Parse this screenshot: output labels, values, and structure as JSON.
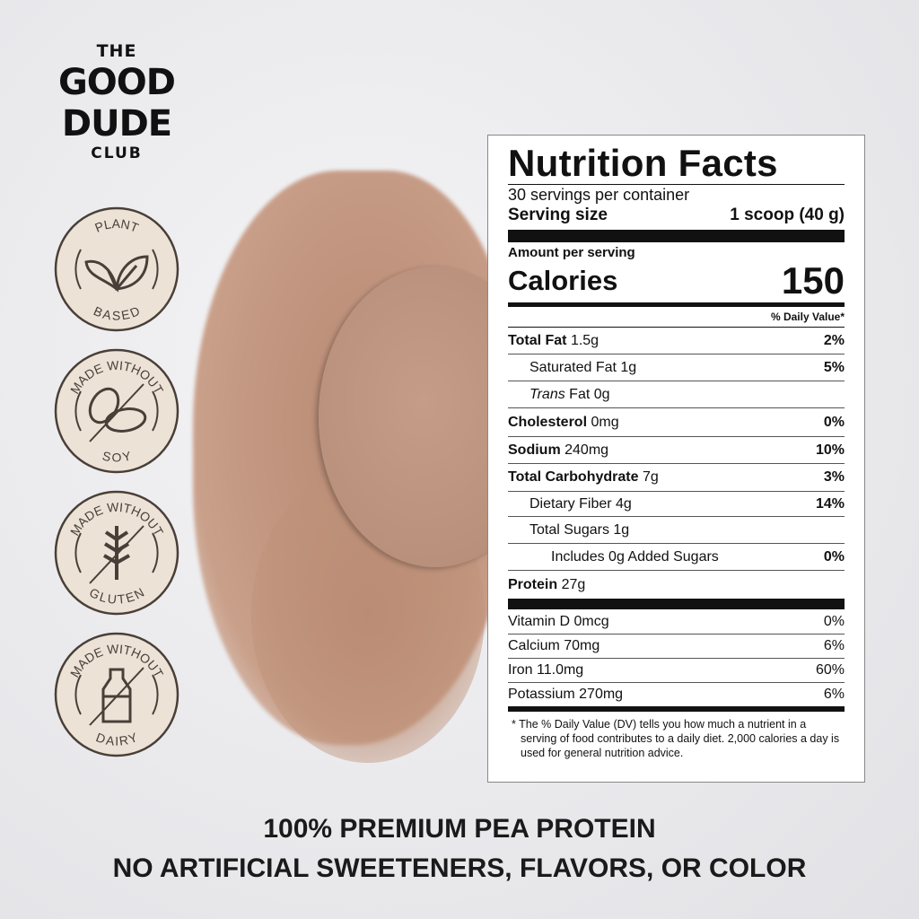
{
  "brand": {
    "logo_text": [
      "THE",
      "GOOD",
      "DUDE",
      "CLUB"
    ]
  },
  "badges": [
    {
      "top": "PLANT",
      "bottom": "BASED",
      "icon": "leaf-icon"
    },
    {
      "top": "MADE WITHOUT",
      "bottom": "SOY",
      "icon": "soybean-icon"
    },
    {
      "top": "MADE WITHOUT",
      "bottom": "GLUTEN",
      "icon": "wheat-icon"
    },
    {
      "top": "MADE WITHOUT",
      "bottom": "DAIRY",
      "icon": "milk-bottle-icon"
    }
  ],
  "nutrition": {
    "title": "Nutrition Facts",
    "servings": "30 servings per container",
    "serving_size_label": "Serving size",
    "serving_size_value": "1 scoop (40 g)",
    "amount_per_serving": "Amount per serving",
    "calories_label": "Calories",
    "calories_value": "150",
    "dv_header": "% Daily Value*",
    "rows": [
      {
        "name": "Total Fat",
        "amount": "1.5g",
        "dv": "2%",
        "indent": 0,
        "bold": true
      },
      {
        "name": "Saturated Fat",
        "amount": "1g",
        "dv": "5%",
        "indent": 1
      },
      {
        "name": "Trans",
        "name2": "Fat",
        "amount": "0g",
        "dv": "",
        "indent": 1,
        "italic": true
      },
      {
        "name": "Cholesterol",
        "amount": "0mg",
        "dv": "0%",
        "indent": 0,
        "bold": true
      },
      {
        "name": "Sodium",
        "amount": "240mg",
        "dv": "10%",
        "indent": 0,
        "bold": true
      },
      {
        "name": "Total Carbohydrate",
        "amount": "7g",
        "dv": "3%",
        "indent": 0,
        "bold": true
      },
      {
        "name": "Dietary Fiber",
        "amount": "4g",
        "dv": "14%",
        "indent": 1
      },
      {
        "name": "Total Sugars",
        "amount": "1g",
        "dv": "",
        "indent": 1
      },
      {
        "name": "Includes 0g Added Sugars",
        "amount": "",
        "dv": "0%",
        "indent": 2
      },
      {
        "name": "Protein",
        "amount": "27g",
        "dv": "",
        "indent": 0,
        "bold": true
      }
    ],
    "vitamins": [
      {
        "name": "Vitamin D 0mcg",
        "dv": "0%"
      },
      {
        "name": "Calcium 70mg",
        "dv": "6%"
      },
      {
        "name": "Iron 11.0mg",
        "dv": "60%"
      },
      {
        "name": "Potassium 270mg",
        "dv": "6%"
      }
    ],
    "footnote": "* The % Daily Value (DV) tells you how much a nutrient in a serving of food contributes to a daily diet. 2,000 calories a day is used for general nutrition advice."
  },
  "tagline": {
    "line1": "100% PREMIUM PEA PROTEIN",
    "line2": "NO ARTIFICIAL SWEETENERS, FLAVORS, OR COLOR"
  },
  "colors": {
    "badge_fill": "#ece3d6",
    "badge_stroke": "#4a3f38",
    "powder": "#c29680"
  }
}
